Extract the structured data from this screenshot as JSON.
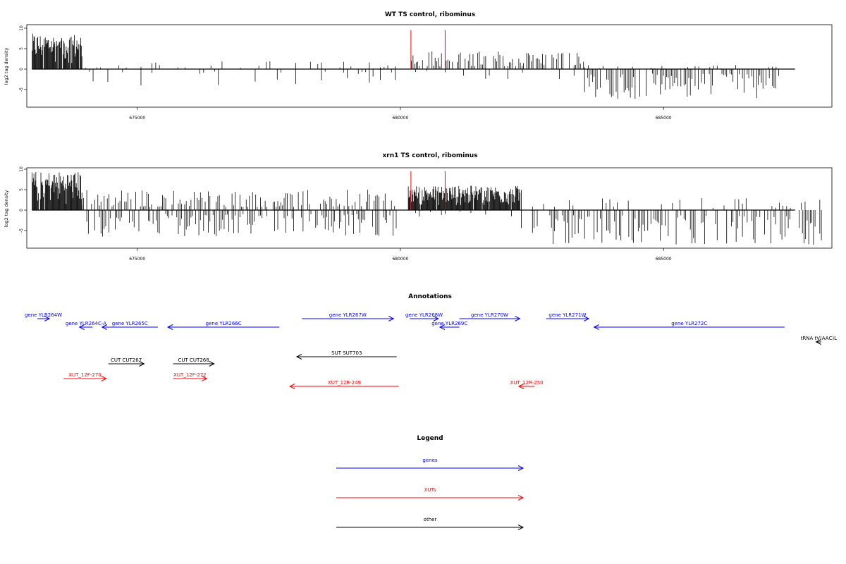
{
  "colors": {
    "genes": "#0000ff",
    "XUTs": "#ff0000",
    "other": "#000000",
    "marker": "#ff0000"
  },
  "chart_data": [
    {
      "type": "bar",
      "title": "WT TS control, ribominus",
      "ylabel": "log2 tag density",
      "xlim": [
        672900,
        688200
      ],
      "ylim": [
        -9,
        10
      ],
      "y_ticks": [
        10,
        5,
        0,
        -5
      ],
      "x_ticks": [
        675000,
        680000,
        685000
      ],
      "x_tick_labels": [
        "675000",
        "680000",
        "685000"
      ],
      "markers_x": [
        680200,
        680850
      ],
      "marker_height": 9.5,
      "density_regions": [
        {
          "from": 673000,
          "to": 673950,
          "sign": 1,
          "max": 8.7,
          "density": "dense"
        },
        {
          "from": 673950,
          "to": 679950,
          "sign": 1,
          "max": 2.0,
          "density": "sparse"
        },
        {
          "from": 673950,
          "to": 679950,
          "sign": -1,
          "max": 4.0,
          "density": "sparse"
        },
        {
          "from": 680150,
          "to": 683500,
          "sign": 1,
          "max": 4.5,
          "density": "medium"
        },
        {
          "from": 680150,
          "to": 683500,
          "sign": -1,
          "max": 2.5,
          "density": "sparse"
        },
        {
          "from": 683500,
          "to": 687200,
          "sign": -1,
          "max": 7.5,
          "density": "medium"
        },
        {
          "from": 683500,
          "to": 687200,
          "sign": 1,
          "max": 1.0,
          "density": "sparse"
        }
      ]
    },
    {
      "type": "bar",
      "title": "xrn1 TS control, ribominus",
      "ylabel": "log2 tag density",
      "xlim": [
        672900,
        688200
      ],
      "ylim": [
        -9,
        10
      ],
      "y_ticks": [
        10,
        5,
        0,
        -5
      ],
      "x_ticks": [
        675000,
        680000,
        685000
      ],
      "x_tick_labels": [
        "675000",
        "680000",
        "685000"
      ],
      "markers_x": [
        680200,
        680850
      ],
      "marker_height": 9.5,
      "density_regions": [
        {
          "from": 673000,
          "to": 673950,
          "sign": 1,
          "max": 9.5,
          "density": "dense"
        },
        {
          "from": 673950,
          "to": 679950,
          "sign": 1,
          "max": 5.0,
          "density": "medium"
        },
        {
          "from": 673950,
          "to": 679950,
          "sign": -1,
          "max": 6.5,
          "density": "medium"
        },
        {
          "from": 680150,
          "to": 682300,
          "sign": 1,
          "max": 6.0,
          "density": "dense"
        },
        {
          "from": 680150,
          "to": 682300,
          "sign": -1,
          "max": 2.5,
          "density": "sparse"
        },
        {
          "from": 682300,
          "to": 688000,
          "sign": -1,
          "max": 8.5,
          "density": "medium"
        },
        {
          "from": 682300,
          "to": 688000,
          "sign": 1,
          "max": 3.0,
          "density": "sparse"
        }
      ]
    }
  ],
  "annotations": {
    "title": "Annotations",
    "features": [
      {
        "label": "gene YLR264W",
        "type": "genes",
        "start": 673100,
        "end": 673330,
        "strand": "+"
      },
      {
        "label": "gene YLR264C-A",
        "type": "genes",
        "start": 673900,
        "end": 674150,
        "strand": "-"
      },
      {
        "label": "gene YLR265C",
        "type": "genes",
        "start": 674330,
        "end": 675390,
        "strand": "-"
      },
      {
        "label": "gene YLR266C",
        "type": "genes",
        "start": 675580,
        "end": 677700,
        "strand": "-"
      },
      {
        "label": "gene YLR267W",
        "type": "genes",
        "start": 678130,
        "end": 679870,
        "strand": "+"
      },
      {
        "label": "gene YLR268W",
        "type": "genes",
        "start": 680180,
        "end": 680720,
        "strand": "+"
      },
      {
        "label": "gene YLR269C",
        "type": "genes",
        "start": 680750,
        "end": 681120,
        "strand": "-"
      },
      {
        "label": "gene YLR270W",
        "type": "genes",
        "start": 681120,
        "end": 682270,
        "strand": "+"
      },
      {
        "label": "gene YLR271W",
        "type": "genes",
        "start": 682770,
        "end": 683580,
        "strand": "+"
      },
      {
        "label": "gene YLR272C",
        "type": "genes",
        "start": 683680,
        "end": 687300,
        "strand": "-"
      },
      {
        "label": "tRNA tV(AAC)L",
        "type": "other",
        "start": 687900,
        "end": 688000,
        "strand": "-"
      },
      {
        "label": "CUT CUT267",
        "type": "other",
        "start": 674450,
        "end": 675130,
        "strand": "+"
      },
      {
        "label": "CUT CUT268",
        "type": "other",
        "start": 675680,
        "end": 676460,
        "strand": "+"
      },
      {
        "label": "SUT SUT703",
        "type": "other",
        "start": 678030,
        "end": 679930,
        "strand": "-"
      },
      {
        "label": "XUT_12F-270",
        "type": "XUTs",
        "start": 673600,
        "end": 674410,
        "strand": "+"
      },
      {
        "label": "XUT_12F-272",
        "type": "XUTs",
        "start": 675680,
        "end": 676320,
        "strand": "+"
      },
      {
        "label": "XUT_12R-249",
        "type": "XUTs",
        "start": 677900,
        "end": 679970,
        "strand": "-"
      },
      {
        "label": "XUT_12R-250",
        "type": "XUTs",
        "start": 682250,
        "end": 682550,
        "strand": "-"
      }
    ]
  },
  "legend": {
    "title": "Legend",
    "items": [
      {
        "label": "genes",
        "type": "genes"
      },
      {
        "label": "XUTs",
        "type": "XUTs"
      },
      {
        "label": "other",
        "type": "other"
      }
    ]
  }
}
